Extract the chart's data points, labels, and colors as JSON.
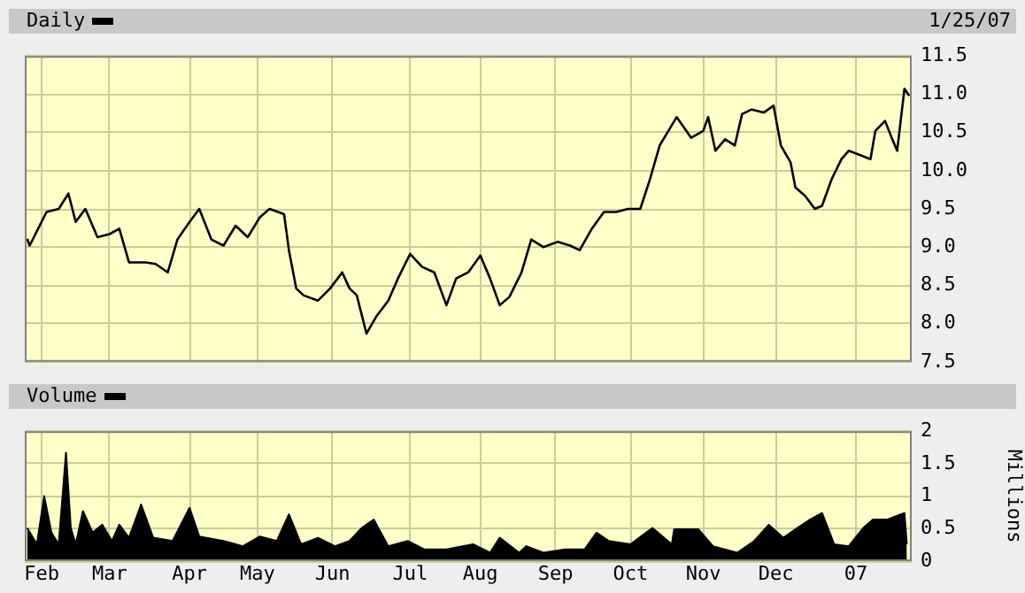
{
  "chart_data": [
    {
      "type": "line",
      "legend": "top left",
      "grid": true,
      "marker": "none",
      "tick_labels": "y",
      "annotations": [
        "1/25/07"
      ],
      "x": [
        "2006-01-26",
        "2006-01-27",
        "2006-02-03",
        "2006-02-08",
        "2006-02-12",
        "2006-02-15",
        "2006-02-19",
        "2006-02-24",
        "2006-03-01",
        "2006-03-05",
        "2006-03-09",
        "2006-03-16",
        "2006-03-20",
        "2006-03-25",
        "2006-03-29",
        "2006-04-03",
        "2006-04-07",
        "2006-04-12",
        "2006-04-17",
        "2006-04-22",
        "2006-04-27",
        "2006-05-02",
        "2006-05-06",
        "2006-05-12",
        "2006-05-14",
        "2006-05-17",
        "2006-05-20",
        "2006-05-26",
        "2006-05-31",
        "2006-06-05",
        "2006-06-08",
        "2006-06-11",
        "2006-06-15",
        "2006-06-19",
        "2006-06-24",
        "2006-06-28",
        "2006-07-03",
        "2006-07-08",
        "2006-07-13",
        "2006-07-18",
        "2006-07-22",
        "2006-07-27",
        "2006-08-01",
        "2006-08-05",
        "2006-08-09",
        "2006-08-13",
        "2006-08-18",
        "2006-08-22",
        "2006-08-27",
        "2006-09-02",
        "2006-09-07",
        "2006-09-11",
        "2006-09-16",
        "2006-09-21",
        "2006-09-26",
        "2006-10-01",
        "2006-10-06",
        "2006-10-10",
        "2006-10-14",
        "2006-10-18",
        "2006-10-21",
        "2006-10-27",
        "2006-11-01",
        "2006-11-03",
        "2006-11-06",
        "2006-11-10",
        "2006-11-14",
        "2006-11-17",
        "2006-11-21",
        "2006-11-26",
        "2006-11-30",
        "2006-12-03",
        "2006-12-07",
        "2006-12-09",
        "2006-12-13",
        "2006-12-17",
        "2006-12-20",
        "2006-12-24",
        "2006-12-28",
        "2006-12-31",
        "2007-01-05",
        "2007-01-09",
        "2007-01-11",
        "2007-01-15",
        "2007-01-18",
        "2007-01-20",
        "2007-01-23",
        "2007-01-25"
      ],
      "series": [
        {
          "name": "Daily",
          "color": "#000000",
          "values": [
            9.11,
            9.02,
            9.46,
            9.5,
            9.7,
            9.33,
            9.5,
            9.13,
            9.17,
            9.24,
            8.8,
            8.8,
            8.78,
            8.67,
            9.1,
            9.33,
            9.5,
            9.1,
            9.02,
            9.28,
            9.13,
            9.39,
            9.5,
            9.43,
            8.96,
            8.46,
            8.37,
            8.3,
            8.46,
            8.67,
            8.46,
            8.37,
            7.87,
            8.09,
            8.3,
            8.59,
            8.91,
            8.74,
            8.67,
            8.24,
            8.59,
            8.67,
            8.89,
            8.59,
            8.24,
            8.35,
            8.67,
            9.1,
            9.0,
            9.07,
            9.02,
            8.96,
            9.24,
            9.46,
            9.46,
            9.5,
            9.5,
            9.89,
            10.33,
            10.54,
            10.7,
            10.43,
            10.52,
            10.7,
            10.26,
            10.41,
            10.33,
            10.74,
            10.8,
            10.76,
            10.85,
            10.33,
            10.11,
            9.78,
            9.67,
            9.5,
            9.54,
            9.89,
            10.15,
            10.26,
            10.2,
            10.15,
            10.52,
            10.65,
            10.41,
            10.26,
            11.07,
            10.98
          ]
        }
      ],
      "xlim": [
        "2006-01-25",
        "2007-01-26"
      ],
      "xticks": [
        {
          "value": "2006-02-01",
          "label": null
        },
        {
          "value": "2006-03-01",
          "label": null
        },
        {
          "value": "2006-04-03",
          "label": null
        },
        {
          "value": "2006-05-01",
          "label": null
        },
        {
          "value": "2006-06-01",
          "label": null
        },
        {
          "value": "2006-07-03",
          "label": null
        },
        {
          "value": "2006-08-01",
          "label": null
        },
        {
          "value": "2006-09-01",
          "label": null
        },
        {
          "value": "2006-10-02",
          "label": null
        },
        {
          "value": "2006-11-01",
          "label": null
        },
        {
          "value": "2006-12-01",
          "label": null
        },
        {
          "value": "2007-01-03",
          "label": null
        }
      ],
      "ylim": [
        7.5,
        11.5
      ],
      "yticks": [
        7.5,
        {
          "value": 8,
          "label": "8.0"
        },
        8.5,
        {
          "value": 9,
          "label": "9.0"
        },
        9.5,
        {
          "value": 10,
          "label": "10.0"
        },
        10.5,
        {
          "value": 11,
          "label": "11.0"
        },
        11.5
      ]
    },
    {
      "type": "area",
      "legend": "top left",
      "grid": true,
      "marker": "none",
      "ylabel": "Millions",
      "x": [
        "2006-01-26",
        "2006-01-30",
        "2006-02-02",
        "2006-02-05",
        "2006-02-08",
        "2006-02-11",
        "2006-02-13",
        "2006-02-15",
        "2006-02-18",
        "2006-02-22",
        "2006-02-26",
        "2006-03-02",
        "2006-03-05",
        "2006-03-09",
        "2006-03-14",
        "2006-03-19",
        "2006-03-27",
        "2006-04-03",
        "2006-04-07",
        "2006-04-17",
        "2006-04-25",
        "2006-05-02",
        "2006-05-09",
        "2006-05-14",
        "2006-05-19",
        "2006-05-26",
        "2006-06-02",
        "2006-06-08",
        "2006-06-13",
        "2006-06-18",
        "2006-06-24",
        "2006-07-02",
        "2006-07-09",
        "2006-07-18",
        "2006-07-29",
        "2006-08-05",
        "2006-08-09",
        "2006-08-17",
        "2006-08-20",
        "2006-08-27",
        "2006-09-05",
        "2006-09-13",
        "2006-09-18",
        "2006-09-23",
        "2006-10-02",
        "2006-10-11",
        "2006-10-19",
        "2006-10-20",
        "2006-10-30",
        "2006-11-05",
        "2006-11-15",
        "2006-11-22",
        "2006-11-28",
        "2006-12-04",
        "2006-12-09",
        "2006-12-15",
        "2006-12-20",
        "2006-12-25",
        "2006-12-31",
        "2007-01-06",
        "2007-01-10",
        "2007-01-16",
        "2007-01-23",
        "2007-01-24"
      ],
      "series": [
        {
          "name": "Volume",
          "color": "#000000",
          "values": [
            0.51,
            0.26,
            1.0,
            0.44,
            0.26,
            1.67,
            0.51,
            0.26,
            0.77,
            0.44,
            0.56,
            0.31,
            0.56,
            0.36,
            0.87,
            0.36,
            0.31,
            0.82,
            0.38,
            0.31,
            0.23,
            0.38,
            0.31,
            0.72,
            0.26,
            0.36,
            0.23,
            0.31,
            0.51,
            0.64,
            0.23,
            0.31,
            0.18,
            0.18,
            0.26,
            0.13,
            0.36,
            0.13,
            0.23,
            0.13,
            0.18,
            0.18,
            0.44,
            0.31,
            0.26,
            0.51,
            0.26,
            0.49,
            0.49,
            0.23,
            0.13,
            0.31,
            0.56,
            0.36,
            0.49,
            0.64,
            0.74,
            0.26,
            0.23,
            0.51,
            0.64,
            0.64,
            0.74,
            0.26
          ]
        }
      ],
      "xlim": [
        "2006-01-25",
        "2007-01-26"
      ],
      "xticks": [
        {
          "value": "2006-02-01",
          "label": "Feb"
        },
        {
          "value": "2006-03-01",
          "label": "Mar"
        },
        {
          "value": "2006-04-03",
          "label": "Apr"
        },
        {
          "value": "2006-05-01",
          "label": "May"
        },
        {
          "value": "2006-06-01",
          "label": "Jun"
        },
        {
          "value": "2006-07-03",
          "label": "Jul"
        },
        {
          "value": "2006-08-01",
          "label": "Aug"
        },
        {
          "value": "2006-09-01",
          "label": "Sep"
        },
        {
          "value": "2006-10-02",
          "label": "Oct"
        },
        {
          "value": "2006-11-01",
          "label": "Nov"
        },
        {
          "value": "2006-12-01",
          "label": "Dec"
        },
        {
          "value": "2007-01-03",
          "label": "07"
        }
      ],
      "ylim": [
        0,
        2
      ],
      "yticks": [
        0,
        0.5,
        1,
        1.5,
        2
      ]
    }
  ]
}
